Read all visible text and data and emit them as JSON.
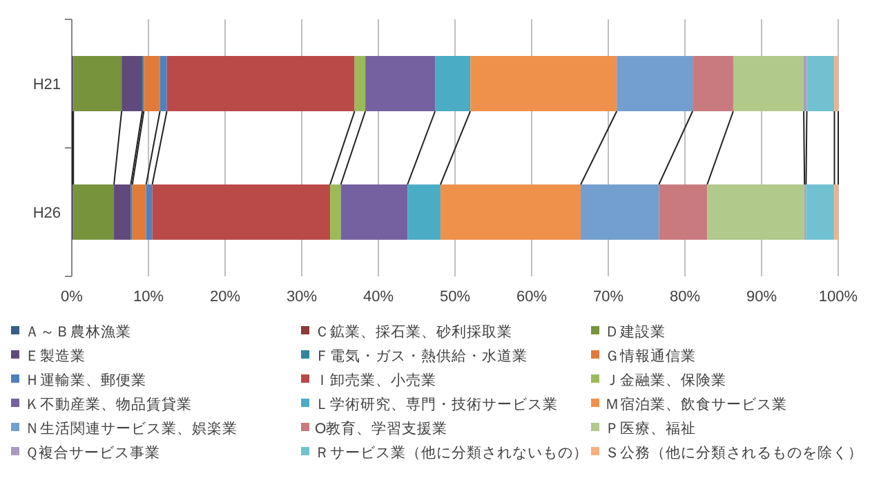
{
  "chart_data": {
    "type": "bar",
    "orientation": "horizontal",
    "stacked": true,
    "categories": [
      "H21",
      "H26"
    ],
    "xlim": [
      0,
      100
    ],
    "xticks": [
      {
        "value": 0,
        "label": "0%"
      },
      {
        "value": 10,
        "label": "10%"
      },
      {
        "value": 20,
        "label": "20%"
      },
      {
        "value": 30,
        "label": "30%"
      },
      {
        "value": 40,
        "label": "40%"
      },
      {
        "value": 50,
        "label": "50%"
      },
      {
        "value": 60,
        "label": "60%"
      },
      {
        "value": 70,
        "label": "70%"
      },
      {
        "value": 80,
        "label": "80%"
      },
      {
        "value": 90,
        "label": "90%"
      },
      {
        "value": 100,
        "label": "100%"
      }
    ],
    "grid": "x",
    "legend": "bottom",
    "series": [
      {
        "name": "Ａ～Ｂ農林漁業",
        "color": "#385d8a",
        "values": [
          0.1,
          0.1
        ]
      },
      {
        "name": "Ｃ鉱業、採石業、砂利採取業",
        "color": "#8e3a38",
        "values": [
          0.1,
          0.1
        ]
      },
      {
        "name": "Ｄ建設業",
        "color": "#77933c",
        "values": [
          6.3,
          5.3
        ]
      },
      {
        "name": "Ｅ製造業",
        "color": "#604a7b",
        "values": [
          2.7,
          2.2
        ]
      },
      {
        "name": "Ｆ電気・ガス・熱供給・水道業",
        "color": "#31859c",
        "values": [
          0.2,
          0.2
        ]
      },
      {
        "name": "Ｇ情報通信業",
        "color": "#e07b39",
        "values": [
          2.1,
          1.8
        ]
      },
      {
        "name": "Ｈ運輸業、郵便業",
        "color": "#4f81bd",
        "values": [
          0.9,
          0.8
        ]
      },
      {
        "name": "Ｉ卸売業、小売業",
        "color": "#b94a48",
        "values": [
          24.5,
          23.2
        ]
      },
      {
        "name": "Ｊ金融業、保険業",
        "color": "#9bbb59",
        "values": [
          1.4,
          1.4
        ]
      },
      {
        "name": "Ｋ不動産業、物品賃貸業",
        "color": "#7461a0",
        "values": [
          9.1,
          8.7
        ]
      },
      {
        "name": "Ｌ学術研究、専門・技術サービス業",
        "color": "#4bacc6",
        "values": [
          4.6,
          4.3
        ]
      },
      {
        "name": "Ｍ宿泊業、飲食サービス業",
        "color": "#f0914b",
        "values": [
          19.1,
          18.3
        ]
      },
      {
        "name": "Ｎ生活関連サービス業、娯楽業",
        "color": "#729fcf",
        "values": [
          9.9,
          10.2
        ]
      },
      {
        "name": "O教育、学習支援業",
        "color": "#c97a7e",
        "values": [
          5.3,
          6.3
        ]
      },
      {
        "name": "Ｐ医療、福祉",
        "color": "#b1c98b",
        "values": [
          9.2,
          12.7
        ]
      },
      {
        "name": "Ｑ複合サービス事業",
        "color": "#a99bc0",
        "values": [
          0.4,
          0.2
        ]
      },
      {
        "name": "Ｒサービス業（他に分類されないもの）",
        "color": "#72c1d1",
        "values": [
          3.6,
          3.7
        ]
      },
      {
        "name": "Ｓ公務（他に分類されるものを除く）",
        "color": "#f9ae7f",
        "values": [
          0.5,
          0.5
        ]
      }
    ]
  }
}
